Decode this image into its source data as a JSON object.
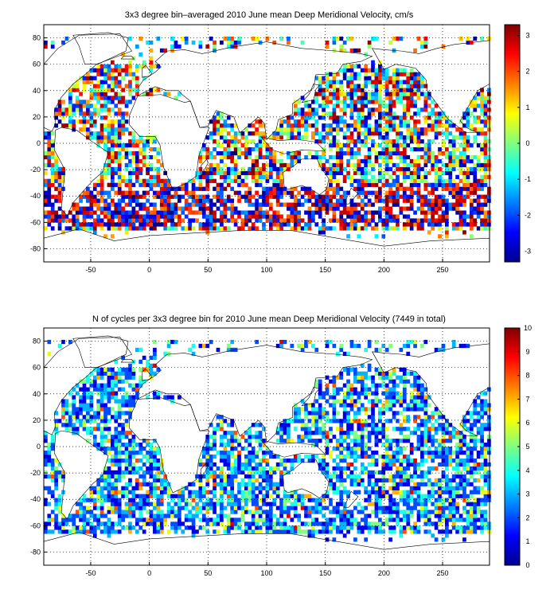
{
  "chart_data": [
    {
      "type": "heatmap",
      "title": "3x3 degree bin–averaged 2010 June mean Deep Meridional Velocity, cm/s",
      "xlabel": "",
      "ylabel": "",
      "xlim": [
        -90,
        290
      ],
      "ylim": [
        -90,
        90
      ],
      "x_ticks": [
        -50,
        0,
        50,
        100,
        150,
        200,
        250
      ],
      "y_ticks": [
        80,
        60,
        40,
        20,
        0,
        -20,
        -40,
        -60,
        -80
      ],
      "colorbar": {
        "min": -3.3,
        "max": 3.3,
        "ticks": [
          3,
          2,
          1,
          0,
          -1,
          -2,
          -3
        ],
        "colormap": "jet"
      },
      "grid": true,
      "bin_size_deg": 3,
      "seed": 11
    },
    {
      "type": "heatmap",
      "title": "N of cycles per 3x3 degree bin for 2010 June mean Deep Meridional Velocity (7449 in total)",
      "xlabel": "",
      "ylabel": "",
      "xlim": [
        -90,
        290
      ],
      "ylim": [
        -90,
        90
      ],
      "x_ticks": [
        -50,
        0,
        50,
        100,
        150,
        200,
        250
      ],
      "y_ticks": [
        80,
        60,
        40,
        20,
        0,
        -20,
        -40,
        -60,
        -80
      ],
      "colorbar": {
        "min": 0,
        "max": 10,
        "ticks": [
          10,
          9,
          8,
          7,
          6,
          5,
          4,
          3,
          2,
          1,
          0
        ],
        "colormap": "jet"
      },
      "grid": true,
      "bin_size_deg": 3,
      "seed": 29
    }
  ],
  "colors": {
    "axes": "#000000",
    "grid": "#000000",
    "coast": "#000000",
    "background": "#ffffff"
  }
}
